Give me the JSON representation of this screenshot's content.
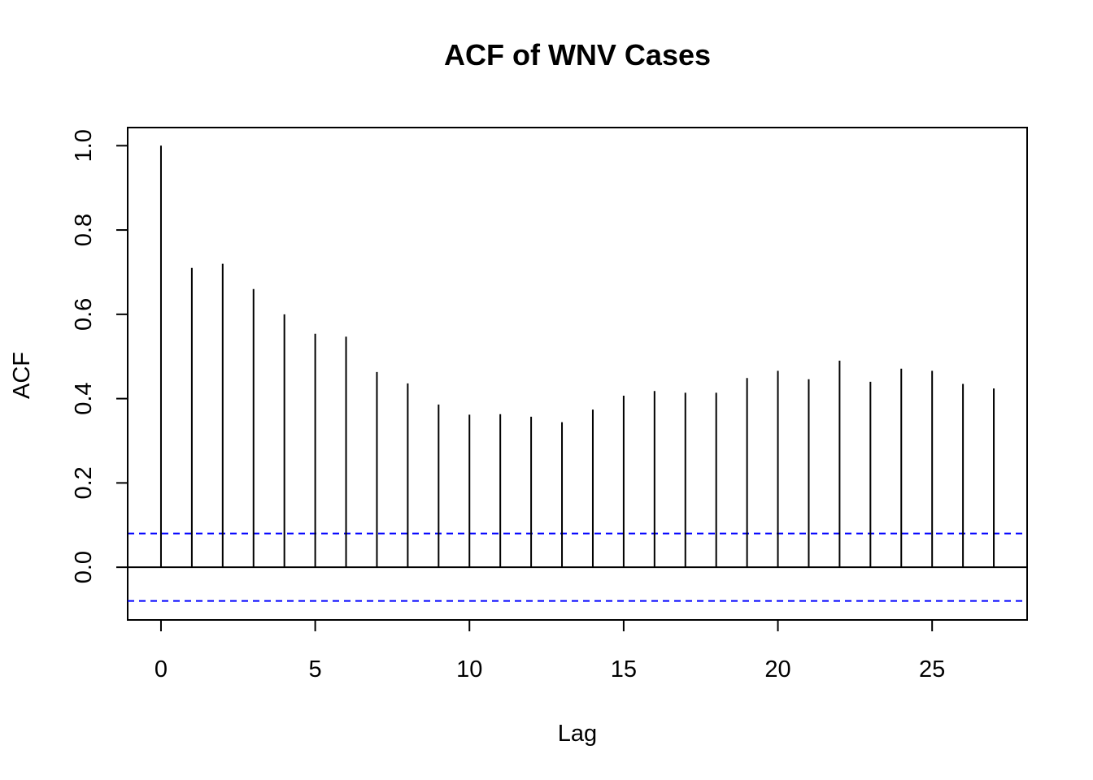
{
  "chart_data": {
    "type": "bar",
    "style": "acf-spikes",
    "title": "ACF of WNV Cases",
    "xlabel": "Lag",
    "ylabel": "ACF",
    "x": [
      0,
      1,
      2,
      3,
      4,
      5,
      6,
      7,
      8,
      9,
      10,
      11,
      12,
      13,
      14,
      15,
      16,
      17,
      18,
      19,
      20,
      21,
      22,
      23,
      24,
      25,
      26,
      27
    ],
    "values": [
      1.0,
      0.71,
      0.72,
      0.66,
      0.6,
      0.554,
      0.547,
      0.463,
      0.436,
      0.386,
      0.362,
      0.363,
      0.357,
      0.344,
      0.374,
      0.407,
      0.418,
      0.414,
      0.414,
      0.449,
      0.466,
      0.446,
      0.49,
      0.44,
      0.471,
      0.466,
      0.435,
      0.424
    ],
    "confidence_band": 0.08,
    "xlim": [
      -1.08,
      28.08
    ],
    "ylim": [
      -0.125,
      1.043
    ],
    "x_ticks": [
      0,
      5,
      10,
      15,
      20,
      25
    ],
    "x_tick_labels": [
      "0",
      "5",
      "10",
      "15",
      "20",
      "25"
    ],
    "y_ticks": [
      0.0,
      0.2,
      0.4,
      0.6,
      0.8,
      1.0
    ],
    "y_tick_labels": [
      "0.0",
      "0.2",
      "0.4",
      "0.6",
      "0.8",
      "1.0"
    ],
    "grid": false,
    "colors": {
      "spike": "#000000",
      "band": "#0000ff",
      "zero_line": "#000000"
    }
  }
}
